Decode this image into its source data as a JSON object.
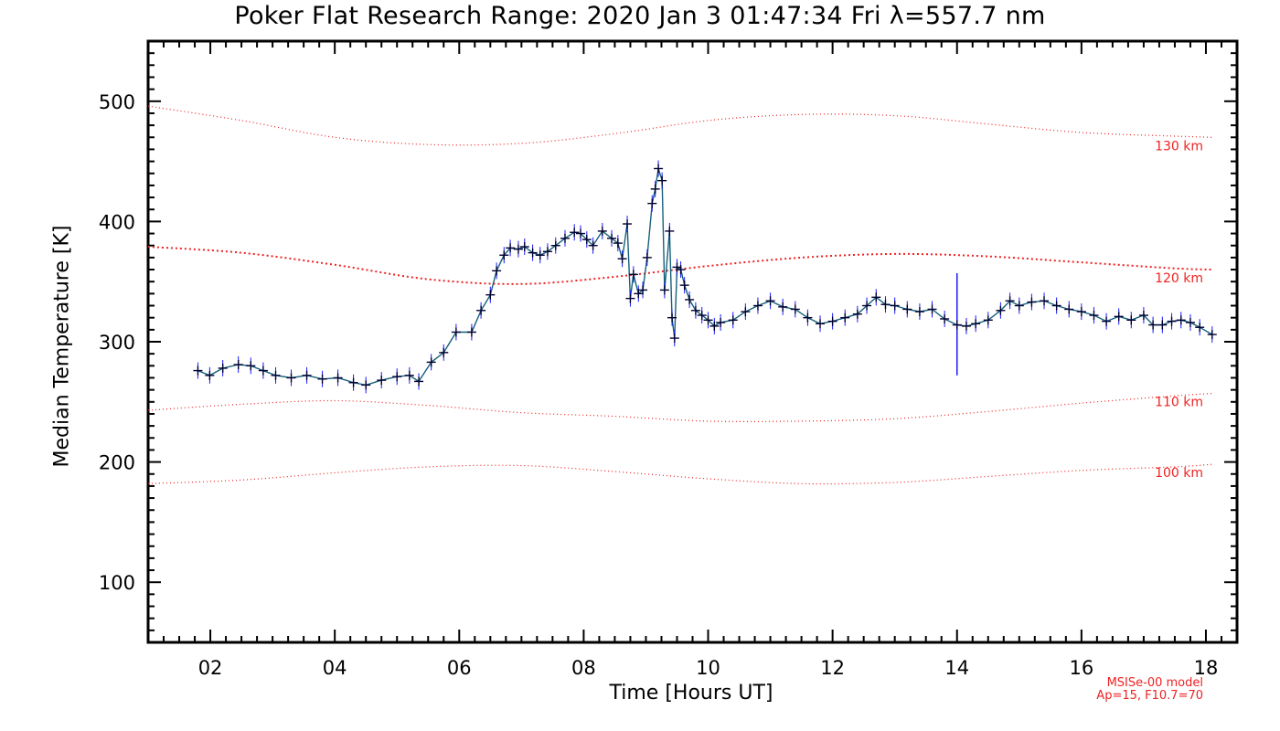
{
  "chart_data": {
    "type": "line",
    "title": "Poker Flat Research Range: 2020 Jan  3 01:47:34 Fri λ=557.7 nm",
    "xlabel": "Time [Hours UT]",
    "ylabel": "Median Temperature [K]",
    "xlim": [
      1.0,
      18.5
    ],
    "ylim": [
      50,
      550
    ],
    "xticks": [
      2,
      4,
      6,
      8,
      10,
      12,
      14,
      16,
      18
    ],
    "xtick_labels": [
      "02",
      "04",
      "06",
      "08",
      "10",
      "12",
      "14",
      "16",
      "18"
    ],
    "yticks": [
      100,
      200,
      300,
      400,
      500
    ],
    "ytick_labels": [
      "100",
      "200",
      "300",
      "400",
      "500"
    ],
    "grid": false,
    "colors": {
      "series": "#16607a",
      "markers": "#000033",
      "error_bars": "#1a1aff",
      "model": "#ee2222"
    },
    "series": [
      {
        "style": "line-with-plus-markers-and-error-bars",
        "points": [
          [
            1.8,
            276
          ],
          [
            1.99,
            272
          ],
          [
            2.2,
            278
          ],
          [
            2.45,
            281
          ],
          [
            2.65,
            280
          ],
          [
            2.85,
            276
          ],
          [
            3.05,
            272
          ],
          [
            3.3,
            270
          ],
          [
            3.55,
            272
          ],
          [
            3.8,
            269
          ],
          [
            4.05,
            270
          ],
          [
            4.3,
            266
          ],
          [
            4.5,
            264
          ],
          [
            4.75,
            268
          ],
          [
            5.0,
            271
          ],
          [
            5.2,
            272
          ],
          [
            5.35,
            267
          ],
          [
            5.55,
            283
          ],
          [
            5.75,
            291
          ],
          [
            5.95,
            308
          ],
          [
            6.2,
            308
          ],
          [
            6.35,
            326
          ],
          [
            6.5,
            339
          ],
          [
            6.6,
            359
          ],
          [
            6.72,
            372
          ],
          [
            6.82,
            378
          ],
          [
            6.95,
            377
          ],
          [
            7.05,
            379
          ],
          [
            7.18,
            374
          ],
          [
            7.3,
            372
          ],
          [
            7.42,
            375
          ],
          [
            7.55,
            380
          ],
          [
            7.7,
            386
          ],
          [
            7.85,
            391
          ],
          [
            7.95,
            390
          ],
          [
            8.05,
            385
          ],
          [
            8.15,
            380
          ],
          [
            8.3,
            392
          ],
          [
            8.45,
            386
          ],
          [
            8.55,
            382
          ],
          [
            8.62,
            369
          ],
          [
            8.7,
            398
          ],
          [
            8.75,
            336
          ],
          [
            8.8,
            356
          ],
          [
            8.88,
            340
          ],
          [
            8.95,
            343
          ],
          [
            9.02,
            370
          ],
          [
            9.1,
            415
          ],
          [
            9.15,
            427
          ],
          [
            9.2,
            444
          ],
          [
            9.26,
            434
          ],
          [
            9.3,
            343
          ],
          [
            9.38,
            392
          ],
          [
            9.42,
            320
          ],
          [
            9.46,
            303
          ],
          [
            9.5,
            362
          ],
          [
            9.56,
            360
          ],
          [
            9.62,
            347
          ],
          [
            9.7,
            335
          ],
          [
            9.8,
            326
          ],
          [
            9.9,
            322
          ],
          [
            10.0,
            318
          ],
          [
            10.1,
            313
          ],
          [
            10.2,
            316
          ],
          [
            10.4,
            318
          ],
          [
            10.6,
            325
          ],
          [
            10.8,
            330
          ],
          [
            11.0,
            334
          ],
          [
            11.2,
            329
          ],
          [
            11.4,
            327
          ],
          [
            11.6,
            320
          ],
          [
            11.8,
            315
          ],
          [
            12.0,
            317
          ],
          [
            12.2,
            320
          ],
          [
            12.4,
            323
          ],
          [
            12.55,
            330
          ],
          [
            12.7,
            337
          ],
          [
            12.85,
            331
          ],
          [
            13.0,
            330
          ],
          [
            13.2,
            327
          ],
          [
            13.4,
            325
          ],
          [
            13.6,
            327
          ],
          [
            13.8,
            319
          ],
          [
            14.0,
            314
          ],
          [
            14.15,
            313
          ],
          [
            14.3,
            315
          ],
          [
            14.5,
            318
          ],
          [
            14.7,
            326
          ],
          [
            14.85,
            334
          ],
          [
            15.0,
            330
          ],
          [
            15.2,
            333
          ],
          [
            15.4,
            334
          ],
          [
            15.6,
            330
          ],
          [
            15.8,
            327
          ],
          [
            16.0,
            325
          ],
          [
            16.2,
            322
          ],
          [
            16.4,
            317
          ],
          [
            16.6,
            321
          ],
          [
            16.8,
            318
          ],
          [
            17.0,
            322
          ],
          [
            17.15,
            314
          ],
          [
            17.3,
            314
          ],
          [
            17.45,
            317
          ],
          [
            17.6,
            318
          ],
          [
            17.75,
            316
          ],
          [
            17.9,
            312
          ],
          [
            18.1,
            306
          ]
        ],
        "error_bar_hours": [
          14.0
        ],
        "error_bar_range": [
          272,
          357
        ]
      }
    ],
    "model_curves": [
      {
        "label": "130 km",
        "points": [
          [
            1.0,
            496
          ],
          [
            2.5,
            484
          ],
          [
            4.0,
            470
          ],
          [
            5.5,
            464
          ],
          [
            7.0,
            465
          ],
          [
            8.5,
            473
          ],
          [
            10.0,
            484
          ],
          [
            11.5,
            489
          ],
          [
            13.0,
            488
          ],
          [
            14.5,
            481
          ],
          [
            16.0,
            474
          ],
          [
            17.5,
            471
          ],
          [
            18.1,
            470
          ]
        ]
      },
      {
        "label": "120 km",
        "points": [
          [
            1.0,
            379
          ],
          [
            2.5,
            374
          ],
          [
            4.0,
            364
          ],
          [
            5.5,
            352
          ],
          [
            7.0,
            348
          ],
          [
            8.5,
            354
          ],
          [
            10.0,
            363
          ],
          [
            11.5,
            370
          ],
          [
            13.0,
            373
          ],
          [
            14.5,
            371
          ],
          [
            16.0,
            366
          ],
          [
            17.5,
            361
          ],
          [
            18.1,
            360
          ]
        ]
      },
      {
        "label": "110 km",
        "points": [
          [
            1.0,
            243
          ],
          [
            2.5,
            248
          ],
          [
            4.0,
            251
          ],
          [
            5.5,
            247
          ],
          [
            7.0,
            241
          ],
          [
            8.5,
            238
          ],
          [
            10.0,
            234
          ],
          [
            11.5,
            234
          ],
          [
            13.0,
            236
          ],
          [
            14.5,
            242
          ],
          [
            16.0,
            249
          ],
          [
            17.5,
            255
          ],
          [
            18.1,
            257
          ]
        ]
      },
      {
        "label": "100 km",
        "points": [
          [
            1.0,
            182
          ],
          [
            2.5,
            185
          ],
          [
            4.0,
            191
          ],
          [
            5.5,
            196
          ],
          [
            7.0,
            197
          ],
          [
            8.5,
            192
          ],
          [
            10.0,
            186
          ],
          [
            11.5,
            182
          ],
          [
            13.0,
            183
          ],
          [
            14.5,
            188
          ],
          [
            16.0,
            193
          ],
          [
            17.5,
            196
          ],
          [
            18.1,
            198
          ]
        ]
      }
    ],
    "annotations": [
      "MSISe-00 model",
      "Ap=15, F10.7=70"
    ]
  }
}
